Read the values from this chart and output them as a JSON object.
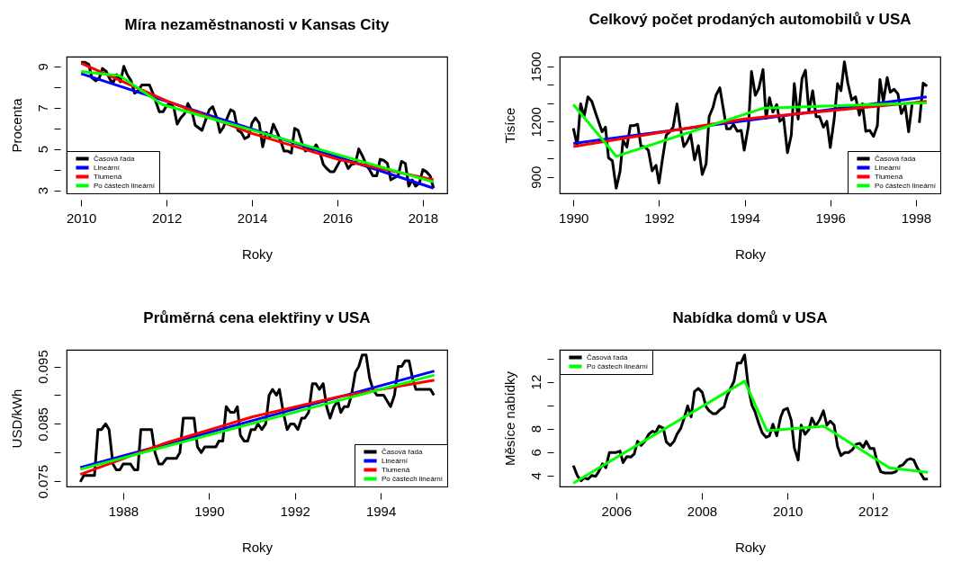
{
  "chart_data": [
    {
      "type": "line",
      "title": "Míra nezaměstnanosti v Kansas City",
      "xlabel": "Roky",
      "ylabel": "Procenta",
      "xlim": [
        2009.66,
        2018.57
      ],
      "ylim": [
        2.85,
        9.47
      ],
      "xticks": [
        2010,
        2012,
        2014,
        2016,
        2018
      ],
      "yticks": [
        3,
        {
          "value": 4,
          "label": null
        },
        5,
        {
          "value": 6,
          "label": null
        },
        7,
        {
          "value": 8,
          "label": null
        },
        9
      ],
      "grid": false,
      "legend": "bottom left",
      "series": [
        {
          "name": "Časová řada",
          "color": "#000000",
          "x": [
            2010.0,
            2010.09,
            2010.18,
            2010.25,
            2010.34,
            2010.42,
            2010.5,
            2010.59,
            2010.68,
            2010.75,
            2010.83,
            2010.92,
            2011.0,
            2011.08,
            2011.17,
            2011.25,
            2011.33,
            2011.42,
            2011.6,
            2011.7,
            2011.83,
            2011.92,
            2012.0,
            2012.09,
            2012.17,
            2012.25,
            2012.33,
            2012.42,
            2012.5,
            2012.59,
            2012.67,
            2012.83,
            2013.0,
            2013.08,
            2013.17,
            2013.25,
            2013.33,
            2013.5,
            2013.58,
            2013.67,
            2013.75,
            2013.83,
            2013.92,
            2014.0,
            2014.08,
            2014.17,
            2014.25,
            2014.33,
            2014.42,
            2014.5,
            2014.58,
            2014.67,
            2014.75,
            2014.83,
            2014.92,
            2015.0,
            2015.08,
            2015.17,
            2015.25,
            2015.33,
            2015.42,
            2015.5,
            2015.58,
            2015.67,
            2015.75,
            2015.83,
            2015.92,
            2016.0,
            2016.08,
            2016.17,
            2016.25,
            2016.33,
            2016.42,
            2016.5,
            2016.59,
            2016.67,
            2016.75,
            2016.83,
            2016.92,
            2017.0,
            2017.08,
            2017.17,
            2017.25,
            2017.33,
            2017.42,
            2017.5,
            2017.59,
            2017.67,
            2017.75,
            2017.83,
            2017.92,
            2018.0,
            2018.08,
            2018.17,
            2018.25
          ],
          "values": [
            9.2,
            9.2,
            9.1,
            8.45,
            8.3,
            8.4,
            8.9,
            8.75,
            8.35,
            8.2,
            8.6,
            8.25,
            9.0,
            8.6,
            8.3,
            7.7,
            7.8,
            8.1,
            8.1,
            7.6,
            6.8,
            6.8,
            7.1,
            7.2,
            7.0,
            6.2,
            6.5,
            6.7,
            7.2,
            6.85,
            6.15,
            5.9,
            6.9,
            7.05,
            6.55,
            5.8,
            6.05,
            6.9,
            6.8,
            5.9,
            5.8,
            5.5,
            5.6,
            6.25,
            6.5,
            6.25,
            5.1,
            5.8,
            5.6,
            6.2,
            5.85,
            5.4,
            4.9,
            4.9,
            4.8,
            6.0,
            5.9,
            5.3,
            4.9,
            5.0,
            4.95,
            5.2,
            4.9,
            4.25,
            4.05,
            3.9,
            3.9,
            4.2,
            4.5,
            4.45,
            4.05,
            4.25,
            4.3,
            5.0,
            4.65,
            4.25,
            4.0,
            3.7,
            3.7,
            4.5,
            4.45,
            4.3,
            3.5,
            3.6,
            3.7,
            4.4,
            4.3,
            3.2,
            3.5,
            3.2,
            3.35,
            4.0,
            3.9,
            3.7,
            3.1
          ]
        },
        {
          "name": "Lineární",
          "color": "#0000ff",
          "x": [
            2010,
            2018.25
          ],
          "values": [
            8.65,
            3.1
          ]
        },
        {
          "name": "Tlumená",
          "color": "#ff0000",
          "x": [
            2010,
            2012,
            2014,
            2016,
            2018.25
          ],
          "values": [
            9.15,
            7.33,
            5.75,
            4.5,
            3.5
          ]
        },
        {
          "name": "Po částech lineární",
          "color": "#00ff00",
          "x": [
            2010,
            2010.9,
            2011.9,
            2018.25
          ],
          "values": [
            8.75,
            8.55,
            7.15,
            3.4
          ]
        }
      ]
    },
    {
      "type": "line",
      "title": "Celkový počet prodaných automobilů v USA",
      "xlabel": "Roky",
      "ylabel": "Tisíce",
      "xlim": [
        1989.68,
        1998.57
      ],
      "ylim": [
        811,
        1553
      ],
      "xticks": [
        1990,
        1992,
        1994,
        1996,
        1998
      ],
      "yticks": [
        900,
        {
          "value": 1000,
          "label": null
        },
        {
          "value": 1100,
          "label": null
        },
        1200,
        {
          "value": 1300,
          "label": null
        },
        {
          "value": 1400,
          "label": null
        },
        1500
      ],
      "grid": false,
      "legend": "bottom right",
      "series": [
        {
          "name": "Časová řada",
          "color": "#000000",
          "x": [
            1990.0,
            1990.09,
            1990.17,
            1990.25,
            1990.34,
            1990.43,
            1990.52,
            1990.67,
            1990.75,
            1990.82,
            1990.91,
            1991.0,
            1991.09,
            1991.16,
            1991.25,
            1991.33,
            1991.41,
            1991.5,
            1991.58,
            1991.66,
            1991.75,
            1991.84,
            1991.93,
            1992.0,
            1992.08,
            1992.17,
            1992.25,
            1992.33,
            1992.42,
            1992.49,
            1992.58,
            1992.65,
            1992.74,
            1992.83,
            1992.92,
            1993.01,
            1993.1,
            1993.17,
            1993.26,
            1993.33,
            1993.42,
            1993.58,
            1993.66,
            1993.74,
            1993.83,
            1993.92,
            1993.99,
            1994.09,
            1994.16,
            1994.25,
            1994.33,
            1994.43,
            1994.5,
            1994.58,
            1994.66,
            1994.75,
            1994.82,
            1994.91,
            1995.0,
            1995.09,
            1995.16,
            1995.25,
            1995.34,
            1995.42,
            1995.5,
            1995.59,
            1995.67,
            1995.75,
            1995.84,
            1995.92,
            1996.0,
            1996.09,
            1996.17,
            1996.25,
            1996.33,
            1996.41,
            1996.5,
            1996.59,
            1996.68,
            1996.75,
            1996.83,
            1996.92,
            1997.01,
            1997.1,
            1997.16,
            1997.24,
            1997.33,
            1997.4,
            1997.49,
            1997.58,
            1997.66,
            1997.75,
            1997.83,
            1997.91,
            1998.0,
            1998.08,
            1998.17,
            1998.26
          ],
          "values": [
            1164,
            1070,
            1297,
            1227,
            1335,
            1310,
            1247,
            1145,
            1170,
            1004,
            988,
            839,
            930,
            1098,
            1062,
            1178,
            1178,
            1186,
            1065,
            1065,
            1045,
            933,
            963,
            867,
            996,
            1128,
            1145,
            1170,
            1297,
            1178,
            1065,
            1087,
            1131,
            993,
            1070,
            913,
            971,
            1227,
            1277,
            1343,
            1384,
            1161,
            1161,
            1186,
            1148,
            1153,
            1045,
            1178,
            1472,
            1343,
            1379,
            1483,
            1219,
            1330,
            1252,
            1293,
            1202,
            1219,
            1032,
            1128,
            1406,
            1214,
            1434,
            1479,
            1257,
            1368,
            1227,
            1227,
            1170,
            1202,
            1060,
            1211,
            1406,
            1368,
            1525,
            1409,
            1318,
            1335,
            1236,
            1297,
            1148,
            1153,
            1120,
            1178,
            1429,
            1310,
            1439,
            1360,
            1376,
            1351,
            1244,
            1286,
            1145,
            1293,
            null,
            1194,
            1409,
            1393
          ]
        },
        {
          "name": "Lineární",
          "color": "#0000ff",
          "x": [
            1990,
            1998.25
          ],
          "values": [
            1082,
            1335
          ]
        },
        {
          "name": "Tlumená",
          "color": "#ff0000",
          "x": [
            1990,
            1994,
            1998.25
          ],
          "values": [
            1065,
            1215,
            1310
          ]
        },
        {
          "name": "Po částech lineární",
          "color": "#00ff00",
          "x": [
            1990,
            1991,
            1994.45,
            1998.25
          ],
          "values": [
            1293,
            1012,
            1274,
            1302
          ]
        }
      ]
    },
    {
      "type": "line",
      "title": "Průměrná cena elektřiny v USA",
      "xlabel": "Roky",
      "ylabel": "USD/kWh",
      "xlim": [
        1986.68,
        1995.55
      ],
      "ylim": [
        0.0741,
        0.0979
      ],
      "xticks": [
        1988,
        1990,
        1992,
        1994
      ],
      "yticks": [
        0.075,
        {
          "value": 0.08,
          "label": null
        },
        0.085,
        {
          "value": 0.09,
          "label": null
        },
        0.095
      ],
      "grid": false,
      "legend": "bottom right",
      "series": [
        {
          "name": "Časová řada",
          "color": "#000000",
          "x": [
            1987.0,
            1987.08,
            1987.33,
            1987.41,
            1987.49,
            1987.59,
            1987.67,
            1987.76,
            1987.84,
            1987.92,
            1988.0,
            1988.17,
            1988.26,
            1988.34,
            1988.41,
            1988.66,
            1988.74,
            1988.83,
            1988.91,
            1989.01,
            1989.24,
            1989.32,
            1989.4,
            1989.65,
            1989.73,
            1989.82,
            1989.9,
            1990.16,
            1990.23,
            1990.32,
            1990.4,
            1990.5,
            1990.59,
            1990.66,
            1990.73,
            1990.82,
            1990.9,
            1990.98,
            1991.07,
            1991.14,
            1991.23,
            1991.32,
            1991.4,
            1991.48,
            1991.57,
            1991.64,
            1991.73,
            1991.82,
            1991.9,
            1991.98,
            1992.07,
            1992.16,
            1992.23,
            1992.32,
            1992.41,
            1992.49,
            1992.57,
            1992.66,
            1992.74,
            1992.82,
            1992.91,
            1993.0,
            1993.07,
            1993.15,
            1993.24,
            1993.32,
            1993.41,
            1993.49,
            1993.57,
            1993.66,
            1993.74,
            1993.82,
            1993.91,
            1994.07,
            1994.23,
            1994.32,
            1994.41,
            1994.49,
            1994.57,
            1994.66,
            1994.74,
            1994.82,
            1995.07,
            1995.16,
            1995.24
          ],
          "values": [
            0.0749,
            0.076,
            0.076,
            0.084,
            0.084,
            0.085,
            0.084,
            0.078,
            0.077,
            0.077,
            0.078,
            0.078,
            0.077,
            0.077,
            0.084,
            0.084,
            0.08,
            0.078,
            0.078,
            0.079,
            0.079,
            0.08,
            0.086,
            0.086,
            0.081,
            0.08,
            0.081,
            0.081,
            0.082,
            0.082,
            0.088,
            0.087,
            0.087,
            0.088,
            0.083,
            0.082,
            0.082,
            0.084,
            0.084,
            0.085,
            0.084,
            0.085,
            0.09,
            0.091,
            0.09,
            0.091,
            0.087,
            0.084,
            0.085,
            0.085,
            0.084,
            0.086,
            0.086,
            0.087,
            0.092,
            0.092,
            0.091,
            0.092,
            0.088,
            0.086,
            0.088,
            0.089,
            0.087,
            0.088,
            0.088,
            0.09,
            0.094,
            0.095,
            0.097,
            0.097,
            0.093,
            0.091,
            0.09,
            0.09,
            0.088,
            0.09,
            0.095,
            0.095,
            0.096,
            0.096,
            0.093,
            0.091,
            0.091,
            0.091,
            0.09
          ]
        },
        {
          "name": "Lineární",
          "color": "#0000ff",
          "x": [
            1987,
            1995.25
          ],
          "values": [
            0.0774,
            0.0942
          ]
        },
        {
          "name": "Tlumená",
          "color": "#ff0000",
          "x": [
            1987,
            1989,
            1991,
            1993,
            1995.25
          ],
          "values": [
            0.0762,
            0.0817,
            0.0862,
            0.0897,
            0.0926
          ]
        },
        {
          "name": "Po částech lineární",
          "color": "#00ff00",
          "x": [
            1987,
            1995.25
          ],
          "values": [
            0.0771,
            0.0935
          ]
        }
      ]
    },
    {
      "type": "line",
      "title": "Nabídka domů v USA",
      "xlabel": "Roky",
      "ylabel": "Měsíce nabídky",
      "xlim": [
        2004.68,
        2013.57
      ],
      "ylim": [
        3.06,
        14.73
      ],
      "xticks": [
        2006,
        2008,
        2010,
        2012
      ],
      "yticks": [
        4,
        6,
        8,
        {
          "value": 10,
          "label": null
        },
        12,
        {
          "value": 14,
          "label": null
        }
      ],
      "grid": false,
      "legend": "top left",
      "series": [
        {
          "name": "Časová řada",
          "color": "#000000",
          "x": [
            2005.0,
            2005.09,
            2005.18,
            2005.25,
            2005.34,
            2005.43,
            2005.52,
            2005.59,
            2005.68,
            2005.76,
            2005.84,
            2006.0,
            2006.09,
            2006.16,
            2006.25,
            2006.34,
            2006.42,
            2006.5,
            2006.58,
            2006.67,
            2006.76,
            2006.85,
            2006.92,
            2007.0,
            2007.1,
            2007.17,
            2007.26,
            2007.35,
            2007.42,
            2007.51,
            2007.58,
            2007.67,
            2007.75,
            2007.83,
            2007.92,
            2008.01,
            2008.1,
            2008.17,
            2008.26,
            2008.33,
            2008.42,
            2008.52,
            2008.59,
            2008.67,
            2008.75,
            2008.83,
            2008.91,
            2009.0,
            2009.09,
            2009.17,
            2009.24,
            2009.33,
            2009.41,
            2009.5,
            2009.58,
            2009.66,
            2009.75,
            2009.84,
            2009.91,
            2010.0,
            2010.09,
            2010.16,
            2010.25,
            2010.32,
            2010.41,
            2010.5,
            2010.57,
            2010.66,
            2010.75,
            2010.84,
            2010.92,
            2011.0,
            2011.09,
            2011.17,
            2011.25,
            2011.34,
            2011.43,
            2011.52,
            2011.6,
            2011.69,
            2011.77,
            2011.84,
            2011.93,
            2012.02,
            2012.1,
            2012.18,
            2012.27,
            2012.44,
            2012.53,
            2012.62,
            2012.7,
            2012.79,
            2012.87,
            2012.95,
            2013.03,
            2013.12,
            2013.19,
            2013.28
          ],
          "values": [
            4.84,
            4.0,
            3.54,
            3.8,
            3.69,
            4.0,
            3.93,
            4.32,
            5.0,
            4.66,
            5.96,
            5.96,
            6.09,
            5.1,
            5.62,
            5.57,
            5.83,
            6.92,
            6.56,
            6.92,
            7.52,
            7.78,
            7.65,
            8.22,
            8.04,
            6.87,
            6.56,
            6.92,
            7.52,
            8.04,
            8.82,
            9.94,
            9.0,
            11.17,
            11.43,
            11.09,
            9.86,
            9.53,
            9.27,
            9.27,
            9.6,
            9.86,
            10.78,
            11.43,
            12.03,
            13.59,
            13.59,
            14.29,
            11.43,
            10.0,
            9.47,
            8.43,
            7.65,
            7.26,
            7.39,
            8.38,
            7.39,
            8.95,
            9.6,
            9.73,
            8.69,
            6.35,
            5.31,
            8.3,
            7.52,
            7.91,
            8.9,
            8.22,
            8.74,
            9.53,
            8.3,
            8.64,
            8.3,
            6.48,
            5.7,
            5.96,
            5.96,
            6.22,
            6.66,
            6.74,
            6.4,
            6.92,
            6.3,
            6.3,
            5.05,
            4.32,
            4.21,
            4.21,
            4.32,
            4.79,
            4.92,
            5.31,
            5.44,
            5.31,
            4.66,
            4.14,
            3.69,
            3.69
          ]
        },
        {
          "name": "Po částech lineární",
          "color": "#00ff00",
          "x": [
            2005,
            2009,
            2009.52,
            2010.85,
            2012.38,
            2013.28
          ],
          "values": [
            3.35,
            12.05,
            7.82,
            8.2,
            4.66,
            4.27
          ]
        }
      ]
    }
  ]
}
